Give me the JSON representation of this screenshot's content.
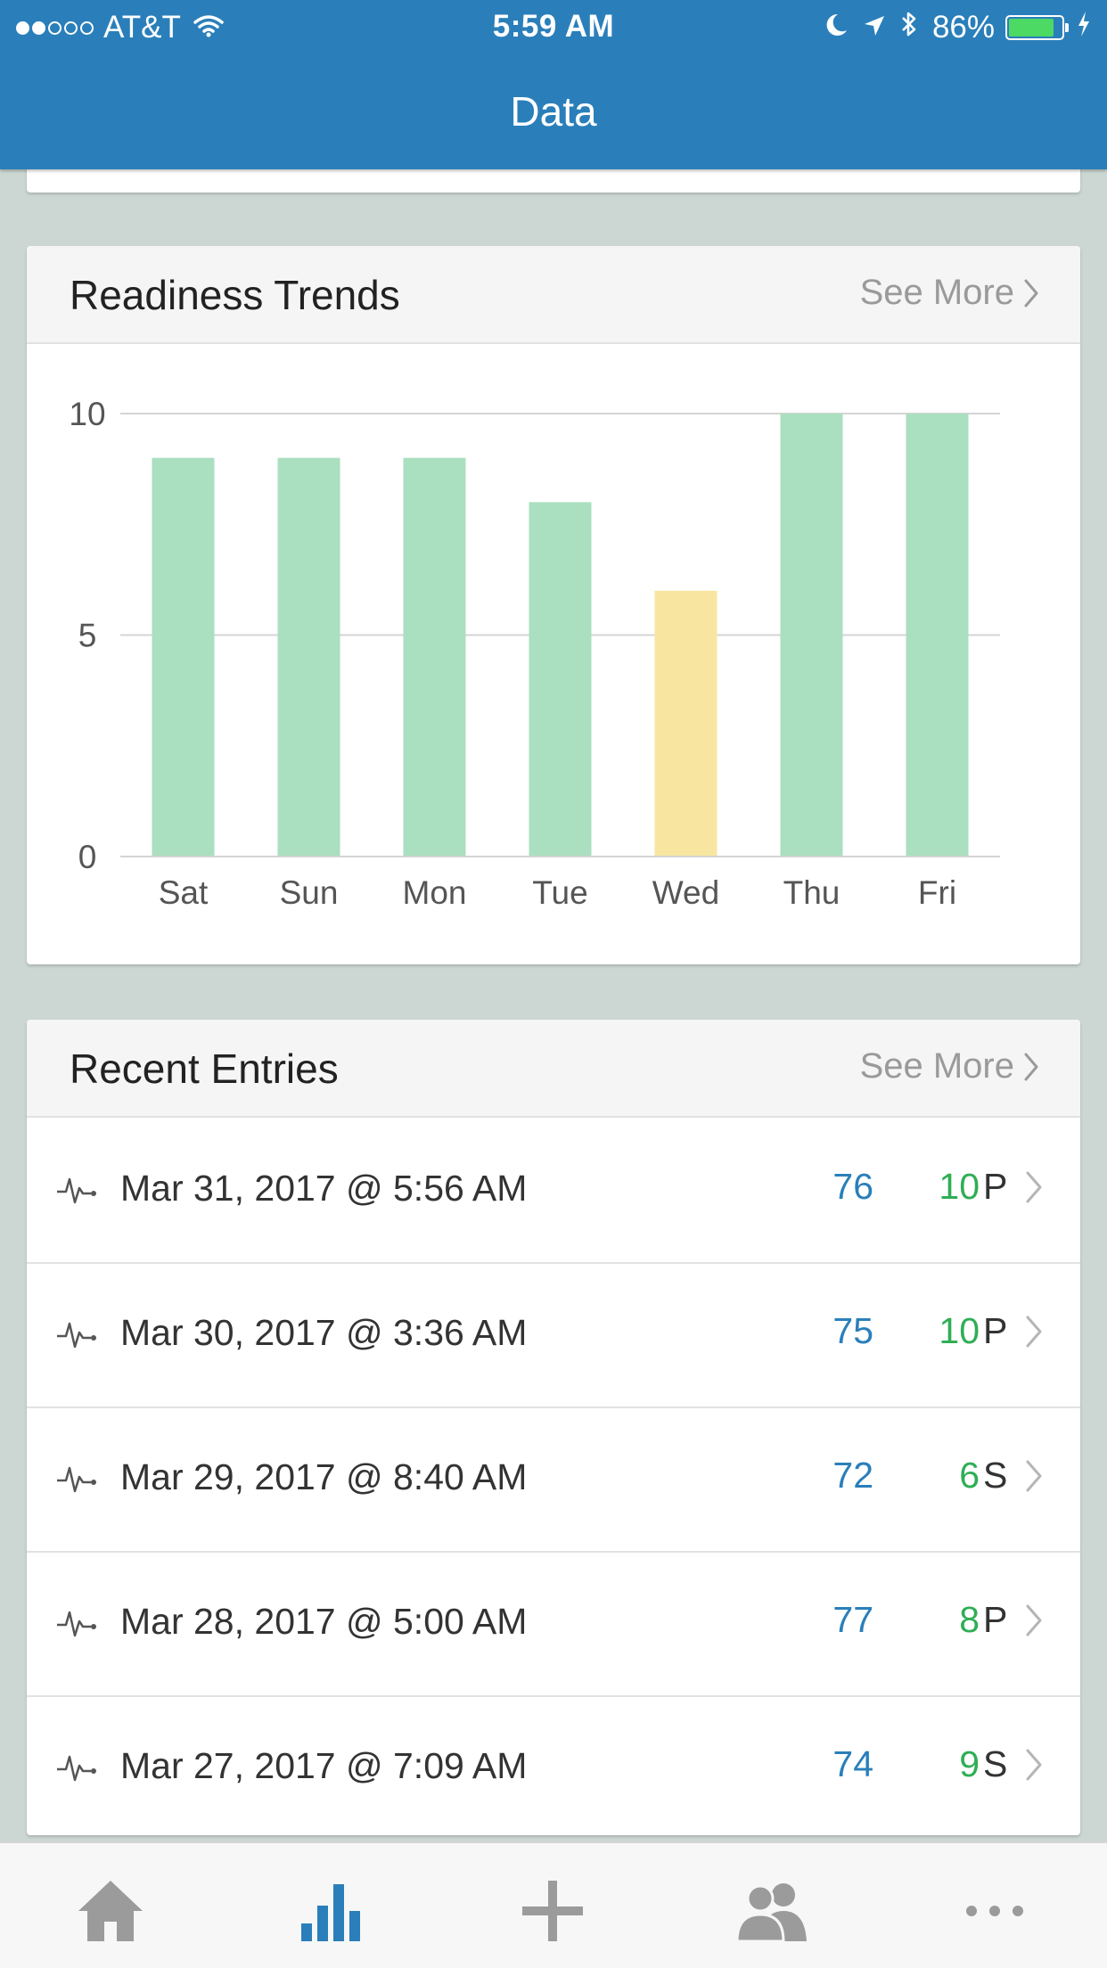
{
  "status_bar": {
    "signal_full": 2,
    "signal_empty": 3,
    "carrier": "AT&T",
    "time": "5:59 AM",
    "battery_text": "86%",
    "battery_level": 0.86
  },
  "header": {
    "title": "Data"
  },
  "trends": {
    "title": "Readiness Trends",
    "see_more": "See More"
  },
  "chart_data": {
    "type": "bar",
    "categories": [
      "Sat",
      "Sun",
      "Mon",
      "Tue",
      "Wed",
      "Thu",
      "Fri"
    ],
    "values": [
      9,
      9,
      9,
      8,
      6,
      10,
      10
    ],
    "colors": [
      "#aadfc0",
      "#aadfc0",
      "#aadfc0",
      "#aadfc0",
      "#f8e6a0",
      "#aadfc0",
      "#aadfc0"
    ],
    "yticks": [
      "0",
      "5",
      "10"
    ],
    "ylim": [
      0,
      10
    ],
    "grid": true,
    "title": "",
    "xlabel": "",
    "ylabel": ""
  },
  "entries": {
    "title": "Recent Entries",
    "see_more": "See More",
    "rows": [
      {
        "date": "Mar 31, 2017 @ 5:56 AM",
        "score": "76",
        "readiness": "10",
        "code": "P"
      },
      {
        "date": "Mar 30, 2017 @ 3:36 AM",
        "score": "75",
        "readiness": "10",
        "code": "P"
      },
      {
        "date": "Mar 29, 2017 @ 8:40 AM",
        "score": "72",
        "readiness": "6",
        "code": "S"
      },
      {
        "date": "Mar 28, 2017 @ 5:00 AM",
        "score": "77",
        "readiness": "8",
        "code": "P"
      },
      {
        "date": "Mar 27, 2017 @ 7:09 AM",
        "score": "74",
        "readiness": "9",
        "code": "S"
      }
    ]
  },
  "tabs": [
    {
      "icon": "home-icon",
      "active": false
    },
    {
      "icon": "bar-chart-icon",
      "active": true
    },
    {
      "icon": "plus-icon",
      "active": false
    },
    {
      "icon": "users-icon",
      "active": false
    },
    {
      "icon": "more-icon",
      "active": false
    }
  ],
  "colors": {
    "header": "#2a7fba",
    "background": "#ccd7d3",
    "tab_active": "#2a7fba",
    "tab_inactive": "#9b9b9b",
    "score": "#2a7fba",
    "readiness": "#2fae55"
  }
}
